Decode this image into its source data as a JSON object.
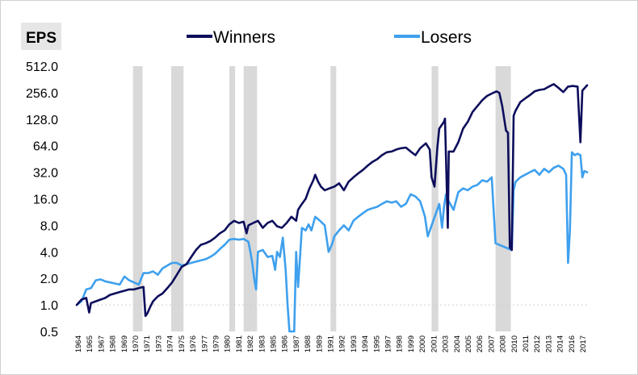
{
  "chart_data": {
    "type": "line",
    "title": "EPS",
    "xlabel": "",
    "ylabel": "",
    "y_scale": "log2",
    "ylim": [
      0.5,
      512
    ],
    "y_ticks": [
      "0.5",
      "1.0",
      "2.0",
      "4.0",
      "8.0",
      "16.0",
      "32.0",
      "64.0",
      "128.0",
      "256.0",
      "512.0"
    ],
    "xlim": [
      1964,
      2017.5
    ],
    "x_ticks": [
      "1964",
      "1965",
      "1967",
      "1968",
      "1969",
      "1970",
      "1971",
      "1973",
      "1974",
      "1975",
      "1976",
      "1977",
      "1979",
      "1980",
      "1981",
      "1982",
      "1983",
      "1985",
      "1986",
      "1987",
      "1988",
      "1989",
      "1991",
      "1992",
      "1993",
      "1994",
      "1995",
      "1997",
      "1998",
      "1999",
      "2000",
      "2001",
      "2003",
      "2004",
      "2005",
      "2006",
      "2007",
      "2008",
      "2010",
      "2011",
      "2012",
      "2013",
      "2014",
      "2016",
      "2017"
    ],
    "legend_position": "top-center",
    "grid": false,
    "recession_shading": [
      [
        1969.9,
        1970.9
      ],
      [
        1973.9,
        1975.2
      ],
      [
        1980.0,
        1980.6
      ],
      [
        1981.5,
        1982.9
      ],
      [
        1990.6,
        1991.2
      ],
      [
        2001.2,
        2001.9
      ],
      [
        2007.9,
        2009.5
      ]
    ],
    "series": [
      {
        "name": "Winners",
        "color": "#0d0d5c",
        "x": [
          1964.0,
          1964.5,
          1965.0,
          1965.3,
          1965.5,
          1966.0,
          1966.5,
          1967.0,
          1967.5,
          1968.0,
          1968.5,
          1969.0,
          1969.5,
          1970.0,
          1970.5,
          1971.0,
          1971.2,
          1971.4,
          1971.7,
          1972.0,
          1972.5,
          1973.0,
          1973.5,
          1974.0,
          1974.5,
          1975.0,
          1975.5,
          1976.0,
          1976.5,
          1977.0,
          1977.5,
          1978.0,
          1978.5,
          1979.0,
          1979.5,
          1980.0,
          1980.5,
          1981.0,
          1981.5,
          1981.8,
          1982.0,
          1982.5,
          1983.0,
          1983.5,
          1984.0,
          1984.5,
          1985.0,
          1985.5,
          1986.0,
          1986.5,
          1987.0,
          1987.2,
          1987.5,
          1988.0,
          1988.4,
          1988.8,
          1989.0,
          1989.3,
          1989.6,
          1990.0,
          1990.5,
          1991.0,
          1991.5,
          1992.0,
          1992.5,
          1993.0,
          1993.5,
          1994.0,
          1994.5,
          1995.0,
          1995.5,
          1996.0,
          1996.5,
          1997.0,
          1997.5,
          1998.0,
          1998.5,
          1999.0,
          1999.5,
          2000.0,
          2000.3,
          2000.6,
          2001.0,
          2001.2,
          2001.5,
          2001.8,
          2002.0,
          2002.5,
          2002.6,
          2002.9,
          2003.0,
          2003.5,
          2004.0,
          2004.5,
          2005.0,
          2005.5,
          2006.0,
          2006.5,
          2007.0,
          2007.5,
          2008.0,
          2008.3,
          2008.6,
          2009.0,
          2009.2,
          2009.4,
          2009.6,
          2009.8,
          2010.0,
          2010.5,
          2011.0,
          2011.5,
          2012.0,
          2012.5,
          2013.0,
          2013.5,
          2014.0,
          2014.5,
          2015.0,
          2015.5,
          2016.0,
          2016.5,
          2016.8,
          2017.0,
          2017.5
        ],
        "y": [
          1.0,
          1.15,
          1.2,
          0.82,
          1.05,
          1.1,
          1.15,
          1.2,
          1.3,
          1.35,
          1.4,
          1.45,
          1.5,
          1.5,
          1.55,
          1.6,
          0.75,
          0.8,
          0.95,
          1.1,
          1.25,
          1.35,
          1.55,
          1.8,
          2.2,
          2.7,
          2.9,
          3.5,
          4.2,
          4.8,
          5.0,
          5.3,
          5.8,
          6.5,
          7.0,
          8.2,
          9.0,
          8.5,
          8.8,
          6.5,
          8.0,
          8.5,
          9.0,
          7.5,
          8.5,
          9.0,
          7.8,
          7.5,
          8.5,
          10.0,
          9.0,
          12.0,
          13.5,
          16.0,
          21.0,
          26.0,
          30.0,
          25.0,
          22.0,
          20.0,
          21.0,
          22.0,
          24.0,
          20.0,
          25.0,
          28.0,
          31.0,
          34.0,
          38.0,
          42.0,
          45.0,
          50.0,
          54.0,
          55.0,
          58.0,
          60.0,
          61.0,
          55.0,
          50.0,
          60.0,
          64.0,
          68.0,
          58.0,
          28.0,
          22.0,
          60.0,
          100.0,
          120.0,
          130.0,
          7.5,
          55.0,
          55.0,
          70.0,
          100.0,
          120.0,
          155.0,
          180.0,
          210.0,
          235.0,
          250.0,
          265.0,
          255.0,
          180.0,
          95.0,
          90.0,
          4.5,
          4.2,
          140.0,
          160.0,
          200.0,
          220.0,
          240.0,
          265.0,
          275.0,
          280.0,
          300.0,
          320.0,
          290.0,
          260.0,
          300.0,
          305.0,
          300.0,
          70.0,
          270.0,
          310.0
        ]
      },
      {
        "name": "Losers",
        "color": "#3ea0ee",
        "x": [
          1964.0,
          1964.5,
          1965.0,
          1965.5,
          1966.0,
          1966.5,
          1967.0,
          1967.5,
          1968.0,
          1968.5,
          1969.0,
          1969.5,
          1970.0,
          1970.5,
          1971.0,
          1971.5,
          1972.0,
          1972.5,
          1973.0,
          1973.5,
          1974.0,
          1974.5,
          1975.0,
          1975.5,
          1976.0,
          1976.5,
          1977.0,
          1977.5,
          1978.0,
          1978.5,
          1979.0,
          1979.5,
          1980.0,
          1980.5,
          1981.0,
          1981.5,
          1982.0,
          1982.2,
          1982.4,
          1982.6,
          1982.8,
          1983.0,
          1983.5,
          1984.0,
          1984.5,
          1984.8,
          1985.0,
          1985.3,
          1985.6,
          1985.9,
          1986.1,
          1986.3,
          1986.6,
          1986.8,
          1987.0,
          1987.2,
          1987.6,
          1988.0,
          1988.3,
          1988.6,
          1989.0,
          1989.5,
          1990.0,
          1990.4,
          1990.8,
          1991.0,
          1991.5,
          1992.0,
          1992.5,
          1993.0,
          1993.5,
          1994.0,
          1994.5,
          1995.0,
          1995.5,
          1996.0,
          1996.5,
          1997.0,
          1997.5,
          1998.0,
          1998.5,
          1999.0,
          1999.5,
          2000.0,
          2000.5,
          2000.8,
          2002.0,
          2002.3,
          2002.5,
          2002.7,
          2003.0,
          2003.5,
          2004.0,
          2004.5,
          2005.0,
          2005.5,
          2006.0,
          2006.5,
          2007.0,
          2007.5,
          2007.7,
          2007.9,
          2009.6,
          2009.8,
          2010.0,
          2010.5,
          2011.0,
          2011.5,
          2012.0,
          2012.5,
          2013.0,
          2013.5,
          2014.0,
          2014.5,
          2015.0,
          2015.3,
          2015.5,
          2015.7,
          2015.9,
          2016.2,
          2016.5,
          2016.8,
          2017.0,
          2017.2,
          2017.5
        ],
        "y": [
          1.0,
          1.1,
          1.5,
          1.55,
          1.9,
          1.95,
          1.85,
          1.8,
          1.75,
          1.7,
          2.1,
          1.9,
          1.8,
          1.7,
          2.3,
          2.3,
          2.4,
          2.2,
          2.6,
          2.8,
          3.0,
          3.0,
          2.8,
          2.9,
          3.0,
          3.1,
          3.2,
          3.3,
          3.5,
          3.8,
          4.3,
          4.8,
          5.5,
          5.6,
          5.5,
          5.6,
          5.2,
          4.0,
          3.0,
          2.0,
          1.5,
          4.0,
          4.2,
          3.5,
          3.6,
          2.5,
          4.0,
          3.5,
          5.8,
          2.5,
          1.0,
          0.5,
          0.5,
          0.5,
          4.0,
          1.6,
          7.5,
          7.0,
          8.2,
          7.0,
          10.0,
          9.0,
          8.0,
          4.0,
          5.0,
          6.0,
          7.0,
          8.0,
          7.0,
          9.0,
          10.0,
          11.0,
          12.0,
          12.5,
          13.0,
          14.0,
          15.0,
          14.5,
          15.0,
          13.0,
          14.0,
          18.0,
          17.0,
          15.0,
          10.0,
          6.0,
          14.0,
          7.5,
          13.0,
          18.0,
          15.0,
          12.0,
          19.0,
          21.0,
          20.0,
          22.0,
          23.0,
          26.0,
          25.0,
          28.0,
          12.0,
          5.0,
          4.2,
          20.0,
          25.0,
          28.0,
          30.0,
          32.0,
          34.0,
          30.0,
          35.0,
          32.0,
          36.0,
          38.0,
          35.0,
          30.0,
          3.0,
          7.0,
          54.0,
          50.0,
          52.0,
          50.0,
          28.0,
          33.0,
          32.0
        ]
      }
    ]
  }
}
